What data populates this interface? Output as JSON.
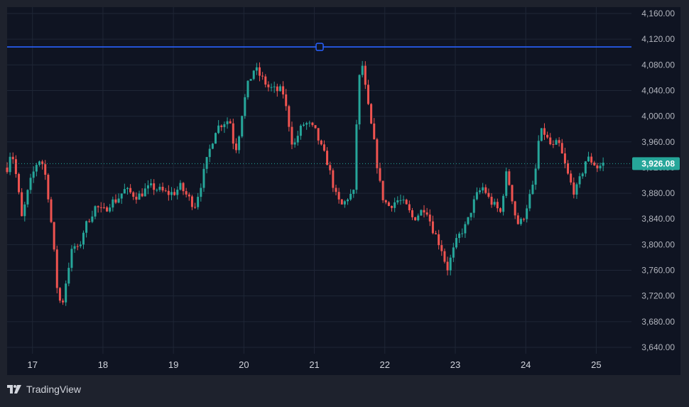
{
  "app": {
    "brand_name": "TradingView"
  },
  "colors": {
    "background": "#0f1422",
    "frame": "#1e222d",
    "grid": "#1f2636",
    "up": "#26a69a",
    "down": "#ef5350",
    "horizontal_line": "#2962ff",
    "price_tag": "#26a69a"
  },
  "chart_data": {
    "type": "candlestick",
    "title": "",
    "xlabel": "",
    "ylabel": "",
    "ylim": [
      3630,
      4170
    ],
    "y_ticks": [
      "3,640.00",
      "3,680.00",
      "3,720.00",
      "3,760.00",
      "3,800.00",
      "3,840.00",
      "3,880.00",
      "3,920.00",
      "3,960.00",
      "4,000.00",
      "4,040.00",
      "4,080.00",
      "4,120.00",
      "4,160.00"
    ],
    "y_tick_values": [
      3640,
      3680,
      3720,
      3760,
      3800,
      3840,
      3880,
      3920,
      3960,
      4000,
      4040,
      4080,
      4120,
      4160
    ],
    "x_ticks": [
      "17",
      "18",
      "19",
      "20",
      "21",
      "22",
      "23",
      "24",
      "25"
    ],
    "x_tick_values": [
      17,
      18,
      19,
      20,
      21,
      22,
      23,
      24,
      25
    ],
    "xlim": [
      16.64,
      25.5
    ],
    "grid": true,
    "last_price_label": "3,926.08",
    "last_price": 3926.08,
    "horizontal_line_level": 4108,
    "price_path": [
      [
        16.64,
        3920
      ],
      [
        16.7,
        3950
      ],
      [
        16.78,
        3900
      ],
      [
        16.85,
        3840
      ],
      [
        16.95,
        3890
      ],
      [
        17.05,
        3925
      ],
      [
        17.12,
        3935
      ],
      [
        17.2,
        3900
      ],
      [
        17.28,
        3820
      ],
      [
        17.36,
        3720
      ],
      [
        17.42,
        3705
      ],
      [
        17.5,
        3760
      ],
      [
        17.58,
        3800
      ],
      [
        17.65,
        3790
      ],
      [
        17.72,
        3820
      ],
      [
        17.8,
        3840
      ],
      [
        17.9,
        3860
      ],
      [
        18.0,
        3850
      ],
      [
        18.1,
        3865
      ],
      [
        18.2,
        3870
      ],
      [
        18.3,
        3885
      ],
      [
        18.4,
        3880
      ],
      [
        18.5,
        3875
      ],
      [
        18.6,
        3885
      ],
      [
        18.7,
        3890
      ],
      [
        18.8,
        3885
      ],
      [
        18.9,
        3880
      ],
      [
        19.0,
        3880
      ],
      [
        19.1,
        3890
      ],
      [
        19.2,
        3875
      ],
      [
        19.3,
        3860
      ],
      [
        19.38,
        3890
      ],
      [
        19.45,
        3920
      ],
      [
        19.52,
        3950
      ],
      [
        19.6,
        3980
      ],
      [
        19.7,
        3990
      ],
      [
        19.8,
        3995
      ],
      [
        19.85,
        3960
      ],
      [
        19.9,
        3950
      ],
      [
        19.98,
        4010
      ],
      [
        20.06,
        4050
      ],
      [
        20.15,
        4075
      ],
      [
        20.25,
        4060
      ],
      [
        20.35,
        4045
      ],
      [
        20.45,
        4040
      ],
      [
        20.55,
        4040
      ],
      [
        20.62,
        4000
      ],
      [
        20.7,
        3950
      ],
      [
        20.78,
        3975
      ],
      [
        20.86,
        3990
      ],
      [
        20.94,
        3985
      ],
      [
        21.02,
        3975
      ],
      [
        21.1,
        3950
      ],
      [
        21.18,
        3930
      ],
      [
        21.25,
        3900
      ],
      [
        21.32,
        3870
      ],
      [
        21.4,
        3860
      ],
      [
        21.48,
        3875
      ],
      [
        21.56,
        3880
      ],
      [
        21.62,
        4050
      ],
      [
        21.68,
        4080
      ],
      [
        21.74,
        4030
      ],
      [
        21.8,
        3990
      ],
      [
        21.86,
        3950
      ],
      [
        21.92,
        3900
      ],
      [
        21.98,
        3870
      ],
      [
        22.05,
        3860
      ],
      [
        22.12,
        3865
      ],
      [
        22.2,
        3870
      ],
      [
        22.3,
        3860
      ],
      [
        22.4,
        3840
      ],
      [
        22.5,
        3850
      ],
      [
        22.58,
        3860
      ],
      [
        22.66,
        3830
      ],
      [
        22.74,
        3810
      ],
      [
        22.82,
        3790
      ],
      [
        22.88,
        3760
      ],
      [
        22.94,
        3780
      ],
      [
        23.0,
        3800
      ],
      [
        23.08,
        3820
      ],
      [
        23.16,
        3830
      ],
      [
        23.24,
        3860
      ],
      [
        23.32,
        3880
      ],
      [
        23.4,
        3890
      ],
      [
        23.48,
        3870
      ],
      [
        23.56,
        3860
      ],
      [
        23.64,
        3850
      ],
      [
        23.72,
        3910
      ],
      [
        23.78,
        3890
      ],
      [
        23.84,
        3850
      ],
      [
        23.9,
        3830
      ],
      [
        23.96,
        3840
      ],
      [
        24.04,
        3870
      ],
      [
        24.12,
        3895
      ],
      [
        24.18,
        3960
      ],
      [
        24.24,
        3980
      ],
      [
        24.3,
        3965
      ],
      [
        24.38,
        3950
      ],
      [
        24.46,
        3960
      ],
      [
        24.54,
        3930
      ],
      [
        24.62,
        3900
      ],
      [
        24.7,
        3880
      ],
      [
        24.78,
        3905
      ],
      [
        24.86,
        3935
      ],
      [
        24.94,
        3930
      ],
      [
        25.02,
        3920
      ],
      [
        25.1,
        3926.08
      ]
    ]
  }
}
